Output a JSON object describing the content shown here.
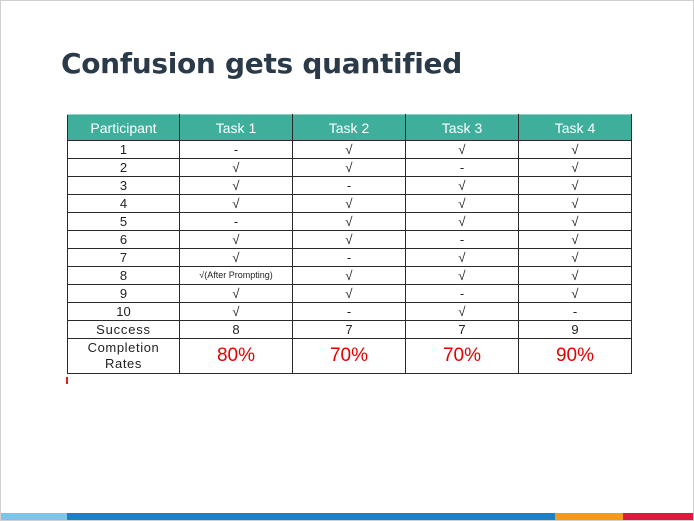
{
  "slide": {
    "title": "Confusion gets quantified"
  },
  "table": {
    "headers": [
      "Participant",
      "Task 1",
      "Task 2",
      "Task 3",
      "Task 4"
    ],
    "rows": [
      [
        "1",
        "-",
        "√",
        "√",
        "√"
      ],
      [
        "2",
        "√",
        "√",
        "-",
        "√"
      ],
      [
        "3",
        "√",
        "-",
        "√",
        "√"
      ],
      [
        "4",
        "√",
        "√",
        "√",
        "√"
      ],
      [
        "5",
        "-",
        "√",
        "√",
        "√"
      ],
      [
        "6",
        "√",
        "√",
        "-",
        "√"
      ],
      [
        "7",
        "√",
        "-",
        "√",
        "√"
      ],
      [
        "8",
        "√(After Prompting)",
        "√",
        "√",
        "√"
      ],
      [
        "9",
        "√",
        "√",
        "-",
        "√"
      ],
      [
        "10",
        "√",
        "-",
        "√",
        "-"
      ]
    ],
    "success": {
      "label": "Success",
      "values": [
        "8",
        "7",
        "7",
        "9"
      ]
    },
    "completion": {
      "label_line1": "Completion",
      "label_line2": "Rates",
      "values": [
        "80%",
        "70%",
        "70%",
        "90%"
      ]
    }
  },
  "colors": {
    "header_bg": "#3fae9b",
    "rate_text": "#e50000",
    "title_text": "#2b3a48",
    "footer": [
      "#7cc4e8",
      "#1f7fc4",
      "#f39a1e",
      "#e3173e"
    ]
  }
}
